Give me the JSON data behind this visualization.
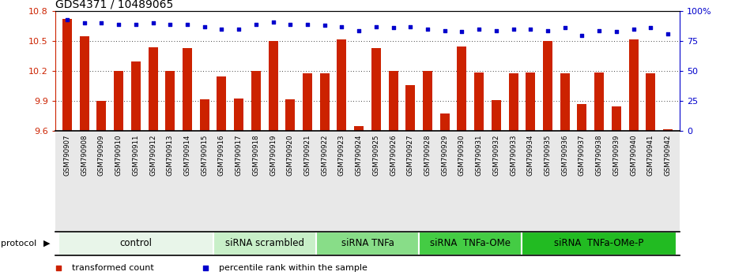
{
  "title": "GDS4371 / 10489065",
  "samples": [
    "GSM790907",
    "GSM790908",
    "GSM790909",
    "GSM790910",
    "GSM790911",
    "GSM790912",
    "GSM790913",
    "GSM790914",
    "GSM790915",
    "GSM790916",
    "GSM790917",
    "GSM790918",
    "GSM790919",
    "GSM790920",
    "GSM790921",
    "GSM790922",
    "GSM790923",
    "GSM790924",
    "GSM790925",
    "GSM790926",
    "GSM790927",
    "GSM790928",
    "GSM790929",
    "GSM790930",
    "GSM790931",
    "GSM790932",
    "GSM790933",
    "GSM790934",
    "GSM790935",
    "GSM790936",
    "GSM790937",
    "GSM790938",
    "GSM790939",
    "GSM790940",
    "GSM790941",
    "GSM790942"
  ],
  "bar_values": [
    10.72,
    10.55,
    9.9,
    10.2,
    10.3,
    10.44,
    10.2,
    10.43,
    9.92,
    10.15,
    9.93,
    10.2,
    10.5,
    9.92,
    10.18,
    10.18,
    10.52,
    9.65,
    10.43,
    10.2,
    10.06,
    10.2,
    9.78,
    10.45,
    10.19,
    9.91,
    10.18,
    10.19,
    10.5,
    10.18,
    9.87,
    10.19,
    9.85,
    10.52,
    10.18,
    9.62
  ],
  "percentile_values": [
    93,
    90,
    90,
    89,
    89,
    90,
    89,
    89,
    87,
    85,
    85,
    89,
    91,
    89,
    89,
    88,
    87,
    84,
    87,
    86,
    87,
    85,
    84,
    83,
    85,
    84,
    85,
    85,
    84,
    86,
    80,
    84,
    83,
    85,
    86,
    81
  ],
  "ylim_left": [
    9.6,
    10.8
  ],
  "yticks_left": [
    9.6,
    9.9,
    10.2,
    10.5,
    10.8
  ],
  "ylim_right": [
    0,
    100
  ],
  "yticks_right": [
    0,
    25,
    50,
    75,
    100
  ],
  "ytick_labels_right": [
    "0",
    "25",
    "50",
    "75",
    "100%"
  ],
  "bar_color": "#cc2200",
  "dot_color": "#0000cc",
  "groups": [
    {
      "label": "control",
      "start": 0,
      "end": 8,
      "color": "#e8f5e9"
    },
    {
      "label": "siRNA scrambled",
      "start": 9,
      "end": 14,
      "color": "#c8efc8"
    },
    {
      "label": "siRNA TNFa",
      "start": 15,
      "end": 20,
      "color": "#88dd88"
    },
    {
      "label": "siRNA  TNFa-OMe",
      "start": 21,
      "end": 26,
      "color": "#44cc44"
    },
    {
      "label": "siRNA  TNFa-OMe-P",
      "start": 27,
      "end": 35,
      "color": "#22bb22"
    }
  ],
  "protocol_label": "protocol",
  "legend_items": [
    {
      "label": "transformed count",
      "color": "#cc2200",
      "marker": "s"
    },
    {
      "label": "percentile rank within the sample",
      "color": "#0000cc",
      "marker": "s"
    }
  ],
  "xlabel_color": "#cc2200",
  "ylabel_right_color": "#0000cc",
  "title_fontsize": 10,
  "tick_fontsize": 8,
  "group_label_fontsize": 8.5
}
